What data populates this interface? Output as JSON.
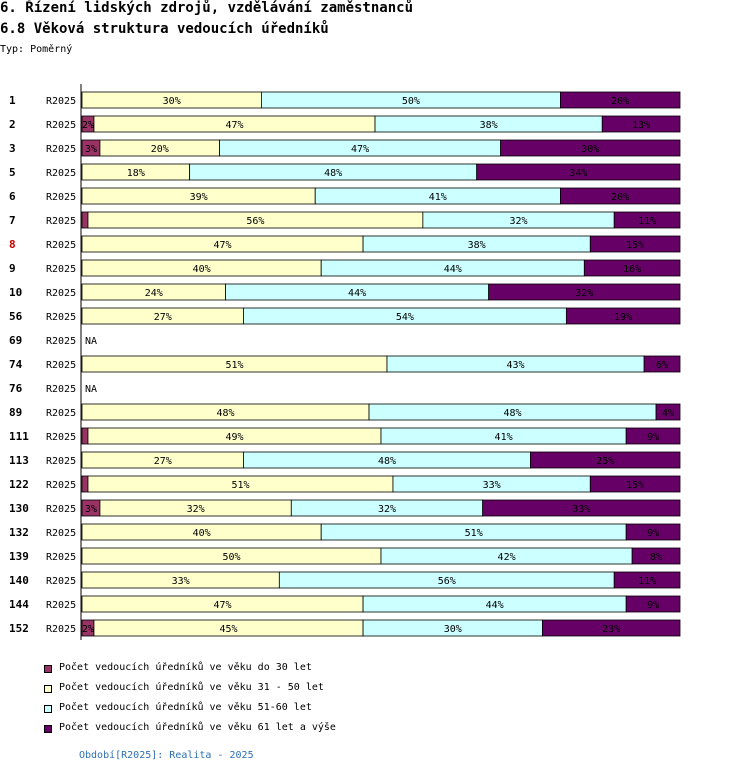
{
  "header": {
    "title": "6. Řízení lidských zdrojů, vzdělávání zaměstnanců",
    "subtitle": "6.8 Věková struktura vedoucích úředníků",
    "type_label": "Typ: Poměrný"
  },
  "colors": {
    "s1": "#993366",
    "s2": "#ffffcc",
    "s3": "#ccffff",
    "s4": "#660066",
    "highlight_label": "#cc0000"
  },
  "chart_data": {
    "type": "bar",
    "orientation": "horizontal",
    "stacked": true,
    "percent_scale": [
      0,
      100
    ],
    "series_names": [
      "Počet vedoucích úředníků ve věku do 30 let",
      "Počet vedoucích úředníků ve věku 31 - 50 let",
      "Počet vedoucích úředníků ve věku 51-60 let",
      "Počet vedoucích úředníků ve věku 61 let a výše"
    ],
    "rows": [
      {
        "id": "1",
        "period": "R2025",
        "values": [
          0,
          30,
          50,
          20
        ],
        "labels": [
          "",
          "30%",
          "50%",
          "20%"
        ]
      },
      {
        "id": "2",
        "period": "R2025",
        "values": [
          2,
          47,
          38,
          13
        ],
        "labels": [
          "2%",
          "47%",
          "38%",
          "13%"
        ]
      },
      {
        "id": "3",
        "period": "R2025",
        "values": [
          3,
          20,
          47,
          30
        ],
        "labels": [
          "3%",
          "20%",
          "47%",
          "30%"
        ]
      },
      {
        "id": "5",
        "period": "R2025",
        "values": [
          0,
          18,
          48,
          34
        ],
        "labels": [
          "",
          "18%",
          "48%",
          "34%"
        ]
      },
      {
        "id": "6",
        "period": "R2025",
        "values": [
          0,
          39,
          41,
          20
        ],
        "labels": [
          "",
          "39%",
          "41%",
          "20%"
        ]
      },
      {
        "id": "7",
        "period": "R2025",
        "values": [
          1,
          56,
          32,
          11
        ],
        "labels": [
          "",
          "56%",
          "32%",
          "11%"
        ]
      },
      {
        "id": "8",
        "period": "R2025",
        "values": [
          0,
          47,
          38,
          15
        ],
        "labels": [
          "",
          "47%",
          "38%",
          "15%"
        ],
        "highlight": true
      },
      {
        "id": "9",
        "period": "R2025",
        "values": [
          0,
          40,
          44,
          16
        ],
        "labels": [
          "",
          "40%",
          "44%",
          "16%"
        ]
      },
      {
        "id": "10",
        "period": "R2025",
        "values": [
          0,
          24,
          44,
          32
        ],
        "labels": [
          "",
          "24%",
          "44%",
          "32%"
        ]
      },
      {
        "id": "56",
        "period": "R2025",
        "values": [
          0,
          27,
          54,
          19
        ],
        "labels": [
          "",
          "27%",
          "54%",
          "19%"
        ]
      },
      {
        "id": "69",
        "period": "R2025",
        "na": "NA"
      },
      {
        "id": "74",
        "period": "R2025",
        "values": [
          0,
          51,
          43,
          6
        ],
        "labels": [
          "",
          "51%",
          "43%",
          "6%"
        ]
      },
      {
        "id": "76",
        "period": "R2025",
        "na": "NA"
      },
      {
        "id": "89",
        "period": "R2025",
        "values": [
          0,
          48,
          48,
          4
        ],
        "labels": [
          "",
          "48%",
          "48%",
          "4%"
        ]
      },
      {
        "id": "111",
        "period": "R2025",
        "values": [
          1,
          49,
          41,
          9
        ],
        "labels": [
          "",
          "49%",
          "41%",
          "9%"
        ]
      },
      {
        "id": "113",
        "period": "R2025",
        "values": [
          0,
          27,
          48,
          25
        ],
        "labels": [
          "",
          "27%",
          "48%",
          "25%"
        ]
      },
      {
        "id": "122",
        "period": "R2025",
        "values": [
          1,
          51,
          33,
          15
        ],
        "labels": [
          "",
          "51%",
          "33%",
          "15%"
        ]
      },
      {
        "id": "130",
        "period": "R2025",
        "values": [
          3,
          32,
          32,
          33
        ],
        "labels": [
          "3%",
          "32%",
          "32%",
          "33%"
        ]
      },
      {
        "id": "132",
        "period": "R2025",
        "values": [
          0,
          40,
          51,
          9
        ],
        "labels": [
          "",
          "40%",
          "51%",
          "9%"
        ]
      },
      {
        "id": "139",
        "period": "R2025",
        "values": [
          0,
          50,
          42,
          8
        ],
        "labels": [
          "",
          "50%",
          "42%",
          "8%"
        ]
      },
      {
        "id": "140",
        "period": "R2025",
        "values": [
          0,
          33,
          56,
          11
        ],
        "labels": [
          "",
          "33%",
          "56%",
          "11%"
        ]
      },
      {
        "id": "144",
        "period": "R2025",
        "values": [
          0,
          47,
          44,
          9
        ],
        "labels": [
          "",
          "47%",
          "44%",
          "9%"
        ]
      },
      {
        "id": "152",
        "period": "R2025",
        "values": [
          2,
          45,
          30,
          23
        ],
        "labels": [
          "2%",
          "45%",
          "30%",
          "23%"
        ]
      }
    ]
  },
  "footer": {
    "period_note": "Období[R2025]: Realita - 2025"
  }
}
